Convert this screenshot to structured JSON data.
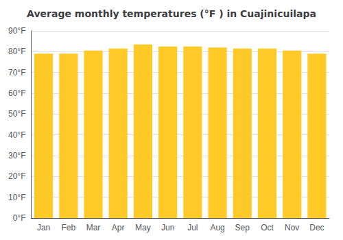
{
  "chart_data": {
    "type": "bar",
    "title": "Average monthly temperatures (°F ) in Cuajinicuilapa",
    "categories": [
      "Jan",
      "Feb",
      "Mar",
      "Apr",
      "May",
      "Jun",
      "Jul",
      "Aug",
      "Sep",
      "Oct",
      "Nov",
      "Dec"
    ],
    "values": [
      79.0,
      79.0,
      80.5,
      81.5,
      83.5,
      82.5,
      82.5,
      82.0,
      81.5,
      81.5,
      80.5,
      79.0
    ],
    "color": "#FFCA28",
    "ylim": [
      0,
      90
    ],
    "yticks": [
      {
        "value": 0,
        "label": "0°F"
      },
      {
        "value": 10,
        "label": "10°F"
      },
      {
        "value": 20,
        "label": "20°F"
      },
      {
        "value": 30,
        "label": "30°F"
      },
      {
        "value": 40,
        "label": "40°F"
      },
      {
        "value": 50,
        "label": "50°F"
      },
      {
        "value": 60,
        "label": "60°F"
      },
      {
        "value": 70,
        "label": "70°F"
      },
      {
        "value": 80,
        "label": "80°F"
      },
      {
        "value": 90,
        "label": "90°F"
      }
    ],
    "grid": true
  }
}
